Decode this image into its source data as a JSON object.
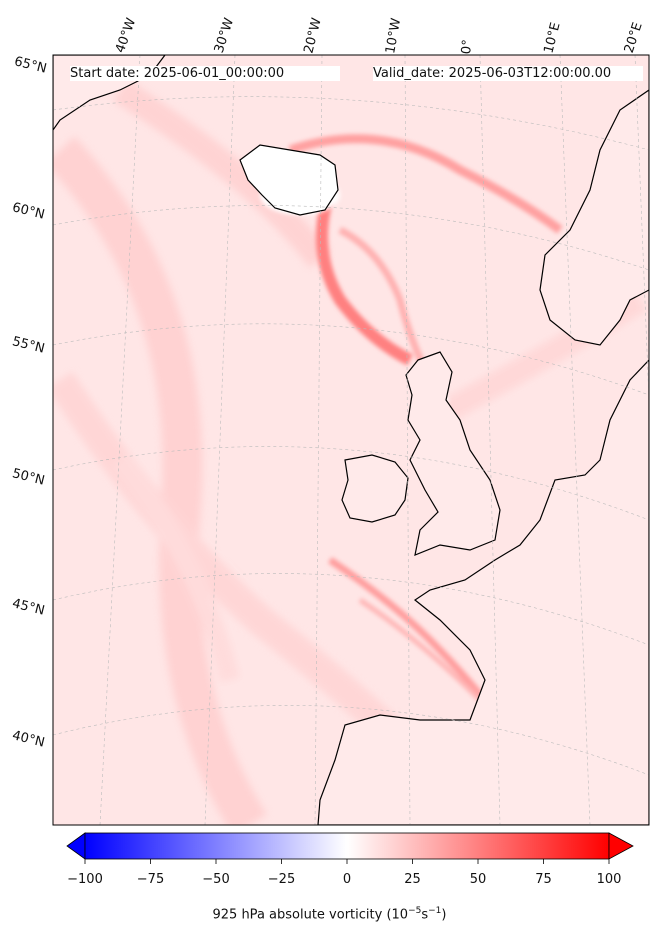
{
  "map": {
    "projection_note": "Lambert-style conic view of North Atlantic / Western Europe",
    "field": "925 hPa absolute vorticity",
    "color_scale": {
      "min": -100,
      "max": 100,
      "negative_color": "#0000ff",
      "zero_color": "#ffffff",
      "positive_color": "#ff0000"
    }
  },
  "header": {
    "start_date": "Start date: 2025-06-01_00:00:00",
    "valid_date": "Valid_date: 2025-06-03T12:00:00.00"
  },
  "longitude_labels": [
    "40°W",
    "30°W",
    "20°W",
    "10°W",
    "0°",
    "10°E",
    "20°E"
  ],
  "latitude_labels": [
    "65°N",
    "60°N",
    "55°N",
    "50°N",
    "45°N",
    "40°N"
  ],
  "colorbar": {
    "ticks": [
      "−100",
      "−75",
      "−50",
      "−25",
      "0",
      "25",
      "50",
      "75",
      "100"
    ],
    "title_main": "925 hPa absolute vorticity (10",
    "title_exp1": "−5",
    "title_mid": "s",
    "title_exp2": "−1",
    "title_end": ")"
  }
}
